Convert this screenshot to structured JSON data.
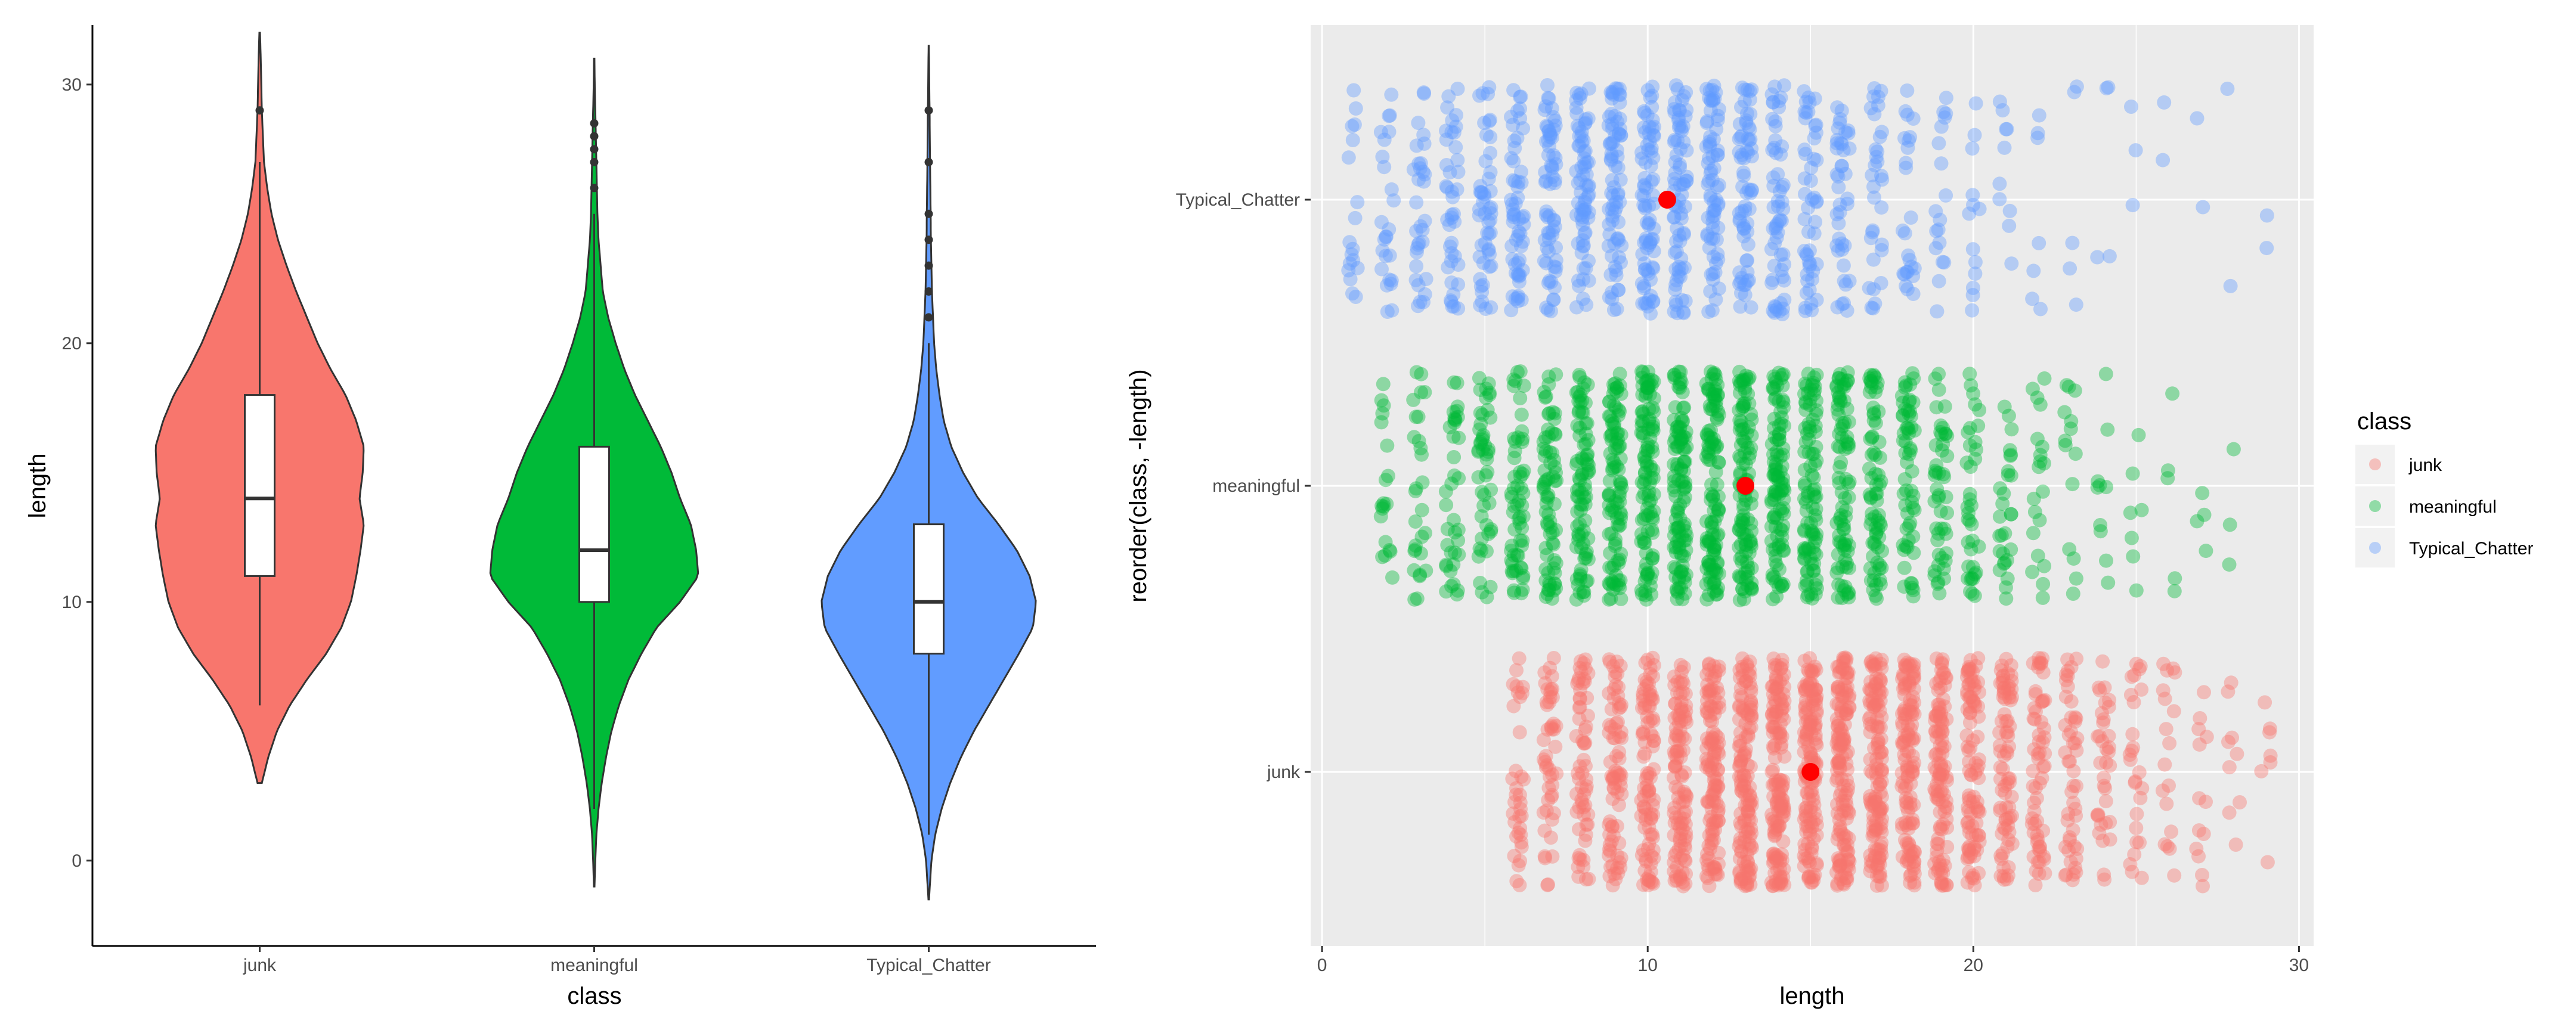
{
  "colors": {
    "junk": "#F8766D",
    "meaningful": "#00BA38",
    "Typical_Chatter": "#619CFF",
    "mean_point": "#FF0000",
    "panel_bg": "#EBEBEB",
    "grid": "#FFFFFF"
  },
  "chart_data": [
    {
      "type": "violin",
      "title": "",
      "xlabel": "class",
      "ylabel": "length",
      "categories": [
        "junk",
        "meaningful",
        "Typical_Chatter"
      ],
      "ylim": [
        -3.3,
        32.3
      ],
      "yticks": [
        0,
        10,
        20,
        30
      ],
      "grid": false,
      "legend": "none",
      "violins": [
        {
          "category": "junk",
          "range": [
            3,
            32
          ],
          "profile": [
            [
              3,
              0.02
            ],
            [
              4,
              0.08
            ],
            [
              5,
              0.16
            ],
            [
              6,
              0.28
            ],
            [
              7,
              0.44
            ],
            [
              8,
              0.62
            ],
            [
              9,
              0.76
            ],
            [
              10,
              0.85
            ],
            [
              11,
              0.9
            ],
            [
              12,
              0.94
            ],
            [
              13,
              0.97
            ],
            [
              14,
              0.93
            ],
            [
              15,
              0.96
            ],
            [
              16,
              0.97
            ],
            [
              17,
              0.9
            ],
            [
              18,
              0.8
            ],
            [
              19,
              0.66
            ],
            [
              20,
              0.54
            ],
            [
              21,
              0.44
            ],
            [
              22,
              0.34
            ],
            [
              23,
              0.25
            ],
            [
              24,
              0.17
            ],
            [
              25,
              0.11
            ],
            [
              26,
              0.07
            ],
            [
              27,
              0.04
            ],
            [
              28,
              0.03
            ],
            [
              29,
              0.02
            ],
            [
              30,
              0.015
            ],
            [
              31,
              0.01
            ],
            [
              32,
              0.003
            ]
          ],
          "box": {
            "lower_whisker": 6,
            "q1": 11,
            "median": 14,
            "q3": 18,
            "upper_whisker": 27,
            "outliers": [
              29
            ]
          }
        },
        {
          "category": "meaningful",
          "range": [
            -1,
            31
          ],
          "profile": [
            [
              -1,
              0.003
            ],
            [
              0,
              0.01
            ],
            [
              1,
              0.02
            ],
            [
              2,
              0.04
            ],
            [
              3,
              0.07
            ],
            [
              4,
              0.11
            ],
            [
              5,
              0.16
            ],
            [
              6,
              0.23
            ],
            [
              7,
              0.32
            ],
            [
              8,
              0.44
            ],
            [
              9,
              0.58
            ],
            [
              10,
              0.8
            ],
            [
              11,
              0.97
            ],
            [
              12,
              0.95
            ],
            [
              13,
              0.9
            ],
            [
              14,
              0.8
            ],
            [
              15,
              0.72
            ],
            [
              16,
              0.62
            ],
            [
              17,
              0.5
            ],
            [
              18,
              0.38
            ],
            [
              19,
              0.28
            ],
            [
              20,
              0.2
            ],
            [
              21,
              0.13
            ],
            [
              22,
              0.08
            ],
            [
              23,
              0.06
            ],
            [
              24,
              0.04
            ],
            [
              25,
              0.03
            ],
            [
              26,
              0.025
            ],
            [
              27,
              0.02
            ],
            [
              28,
              0.015
            ],
            [
              29,
              0.01
            ],
            [
              30,
              0.005
            ],
            [
              31,
              0.002
            ]
          ],
          "box": {
            "lower_whisker": 2,
            "q1": 10,
            "median": 12,
            "q3": 16,
            "upper_whisker": 25,
            "outliers": [
              26,
              27,
              27.5,
              28,
              28.5
            ]
          }
        },
        {
          "category": "Typical_Chatter",
          "range": [
            -1.5,
            31.5
          ],
          "profile": [
            [
              -1.5,
              0.003
            ],
            [
              -1,
              0.01
            ],
            [
              0,
              0.025
            ],
            [
              1,
              0.06
            ],
            [
              2,
              0.12
            ],
            [
              3,
              0.2
            ],
            [
              4,
              0.3
            ],
            [
              5,
              0.42
            ],
            [
              6,
              0.56
            ],
            [
              7,
              0.7
            ],
            [
              8,
              0.84
            ],
            [
              9,
              0.97
            ],
            [
              10,
              1.0
            ],
            [
              11,
              0.94
            ],
            [
              12,
              0.82
            ],
            [
              13,
              0.65
            ],
            [
              14,
              0.46
            ],
            [
              15,
              0.32
            ],
            [
              16,
              0.21
            ],
            [
              17,
              0.14
            ],
            [
              18,
              0.1
            ],
            [
              19,
              0.07
            ],
            [
              20,
              0.05
            ],
            [
              21,
              0.04
            ],
            [
              22,
              0.03
            ],
            [
              23,
              0.025
            ],
            [
              24,
              0.02
            ],
            [
              25,
              0.018
            ],
            [
              26,
              0.015
            ],
            [
              27,
              0.012
            ],
            [
              28,
              0.01
            ],
            [
              29,
              0.008
            ],
            [
              30,
              0.005
            ],
            [
              31,
              0.003
            ],
            [
              31.5,
              0.001
            ]
          ],
          "box": {
            "lower_whisker": 1,
            "q1": 8,
            "median": 10,
            "q3": 13,
            "upper_whisker": 20,
            "outliers": [
              21,
              22,
              23,
              24,
              25,
              27,
              29
            ]
          }
        }
      ]
    },
    {
      "type": "scatter",
      "title": "",
      "xlabel": "length",
      "ylabel": "reorder(class, -length)",
      "categories": [
        "junk",
        "meaningful",
        "Typical_Chatter"
      ],
      "xlim": [
        -0.35,
        30.45
      ],
      "xticks": [
        0,
        10,
        20,
        30
      ],
      "grid": true,
      "legend_position": "right",
      "legend_title": "class",
      "means": [
        {
          "category": "junk",
          "mean": 15.0
        },
        {
          "category": "meaningful",
          "mean": 13.0
        },
        {
          "category": "Typical_Chatter",
          "mean": 10.6
        }
      ],
      "series": [
        {
          "name": "junk",
          "range": [
            6,
            29
          ],
          "mode": 15,
          "n": 1900
        },
        {
          "name": "meaningful",
          "range": [
            2,
            28
          ],
          "mode": 12,
          "n": 1500
        },
        {
          "name": "Typical_Chatter",
          "range": [
            1,
            29
          ],
          "mode": 10,
          "n": 1000
        }
      ],
      "jitter": {
        "x": 0.2,
        "y": 0.4
      }
    }
  ],
  "legend": {
    "title": "class",
    "items": [
      {
        "label": "junk",
        "color": "#F8766D"
      },
      {
        "label": "meaningful",
        "color": "#00BA38"
      },
      {
        "label": "Typical_Chatter",
        "color": "#619CFF"
      }
    ]
  }
}
